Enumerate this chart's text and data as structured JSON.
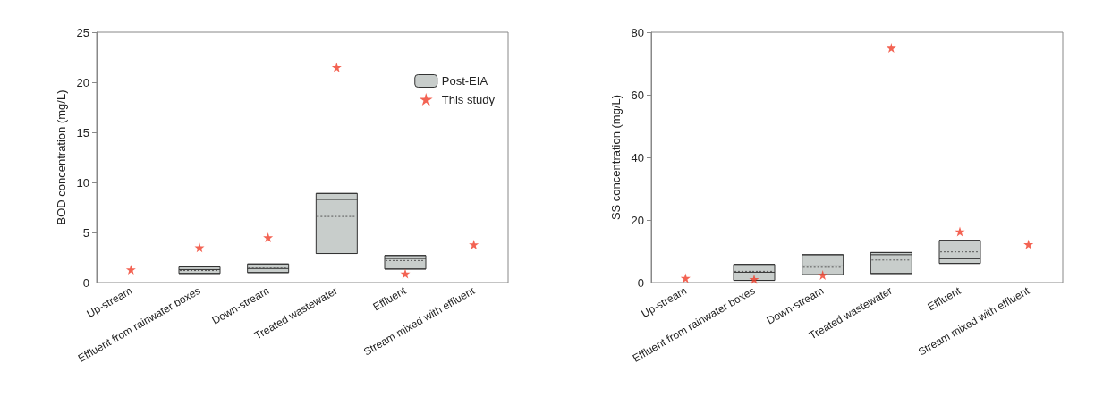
{
  "chart_data": [
    {
      "type": "box",
      "ylabel": "BOD concentration (mg/L)",
      "categories": [
        "Up-stream",
        "Effluent from rainwater boxes",
        "Down-stream",
        "Treated wastewater",
        "Effluent",
        "Stream mixed with effluent"
      ],
      "ylim": [
        0,
        25
      ],
      "yticks": [
        0,
        5,
        10,
        15,
        20,
        25
      ],
      "grid": false,
      "legend": "top right",
      "series": [
        {
          "name": "Post-EIA",
          "color": "#c8cdcb",
          "boxes": [
            null,
            {
              "low": 0.91,
              "q1": 0.91,
              "median": 1.3,
              "q3": 1.56,
              "high": 1.56,
              "mean": 1.2
            },
            {
              "low": 1.0,
              "q1": 1.0,
              "median": 1.4,
              "q3": 1.85,
              "high": 1.85,
              "mean": 1.45
            },
            {
              "low": 2.9,
              "q1": 2.9,
              "median": 8.3,
              "q3": 8.9,
              "high": 8.9,
              "mean": 6.6
            },
            {
              "low": 1.35,
              "q1": 1.35,
              "median": 2.4,
              "q3": 2.7,
              "high": 2.7,
              "mean": 2.2
            },
            null
          ]
        },
        {
          "name": "This study",
          "type": "scatter",
          "color": "#f03c28",
          "marker": "star",
          "x": [
            "Up-stream",
            "Effluent from rainwater boxes",
            "Down-stream",
            "Treated wastewater",
            "Effluent",
            "Stream mixed with effluent"
          ],
          "values": [
            1.3,
            3.5,
            4.5,
            21.5,
            0.9,
            3.8
          ]
        }
      ]
    },
    {
      "type": "box",
      "ylabel": "SS concentration (mg/L)",
      "categories": [
        "Up-stream",
        "Effluent from rainwater boxes",
        "Down-stream",
        "Treated wastewater",
        "Effluent",
        "Stream mixed with effluent"
      ],
      "ylim": [
        0,
        80
      ],
      "yticks": [
        0,
        20,
        40,
        60,
        80
      ],
      "grid": false,
      "legend": false,
      "series": [
        {
          "color": "#c8cdcb",
          "boxes": [
            null,
            {
              "low": 0.7,
              "q1": 0.7,
              "median": 3.3,
              "q3": 5.8,
              "high": 5.8,
              "mean": 3.6
            },
            {
              "low": 2.5,
              "q1": 2.5,
              "median": 5.3,
              "q3": 8.9,
              "high": 8.9,
              "mean": 4.9
            },
            {
              "low": 2.9,
              "q1": 2.9,
              "median": 8.9,
              "q3": 9.6,
              "high": 9.6,
              "mean": 7.2
            },
            {
              "low": 6.1,
              "q1": 6.1,
              "median": 7.6,
              "q3": 13.5,
              "high": 13.5,
              "mean": 9.8
            },
            null
          ]
        },
        {
          "type": "scatter",
          "color": "#f03c28",
          "marker": "star",
          "x": [
            "Up-stream",
            "Effluent from rainwater boxes",
            "Down-stream",
            "Treated wastewater",
            "Effluent",
            "Stream mixed with effluent"
          ],
          "values": [
            1.4,
            1.1,
            2.4,
            75,
            16.3,
            12.2
          ]
        }
      ]
    }
  ]
}
